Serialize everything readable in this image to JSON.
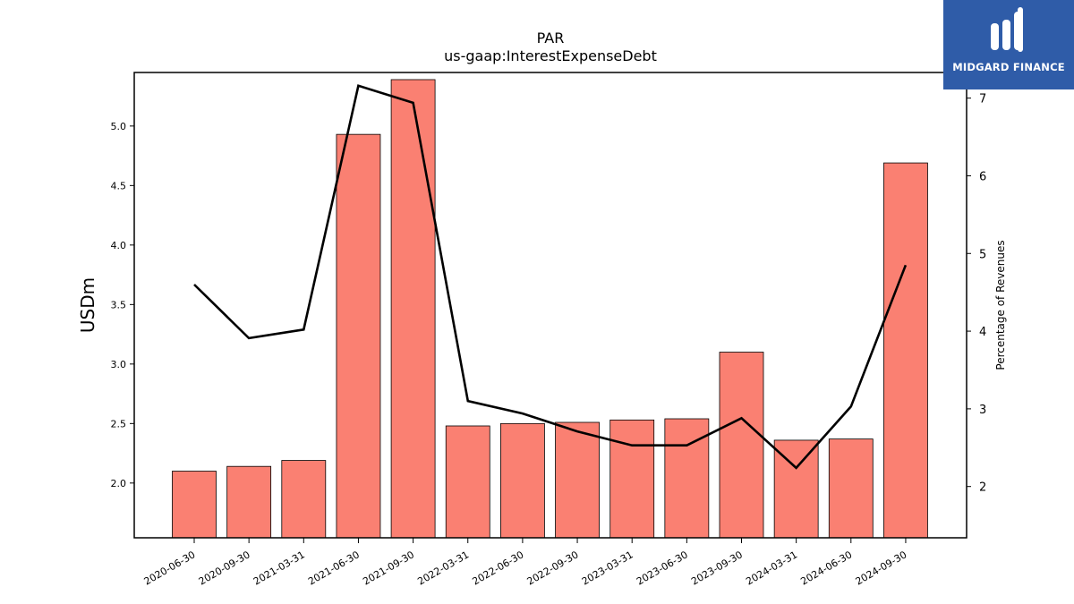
{
  "chart_data": {
    "type": "bar",
    "title": "PAR",
    "subtitle": "us-gaap:InterestExpenseDebt",
    "ylabel": "USDm",
    "y2label": "Percentage of Revenues",
    "categories": [
      "2020-06-30",
      "2020-09-30",
      "2021-03-31",
      "2021-06-30",
      "2021-09-30",
      "2022-03-31",
      "2022-06-30",
      "2022-09-30",
      "2023-03-31",
      "2023-06-30",
      "2023-09-30",
      "2024-03-31",
      "2024-06-30",
      "2024-09-30"
    ],
    "series": [
      {
        "type": "bar",
        "axis": "left",
        "values": [
          2.1,
          2.14,
          2.19,
          4.93,
          5.39,
          2.48,
          2.5,
          2.51,
          2.53,
          2.54,
          3.1,
          2.36,
          2.37,
          4.69
        ]
      },
      {
        "type": "line",
        "axis": "right",
        "values": [
          4.6,
          3.91,
          4.02,
          7.16,
          6.94,
          3.1,
          2.94,
          2.71,
          2.53,
          2.53,
          2.88,
          2.24,
          3.03,
          4.85
        ]
      }
    ],
    "ylim": [
      1.54,
      5.45
    ],
    "y2lim": [
      1.34,
      7.33
    ],
    "yticks": [
      "2.0",
      "2.5",
      "3.0",
      "3.5",
      "4.0",
      "4.5",
      "5.0"
    ],
    "y2ticks": [
      "2",
      "3",
      "4",
      "5",
      "6",
      "7"
    ],
    "colors": {
      "bar": "#fa8072",
      "bar_edge": "#000000",
      "line": "#000000"
    },
    "grid": false
  },
  "logo": {
    "text": "MIDGARD FINANCE"
  }
}
